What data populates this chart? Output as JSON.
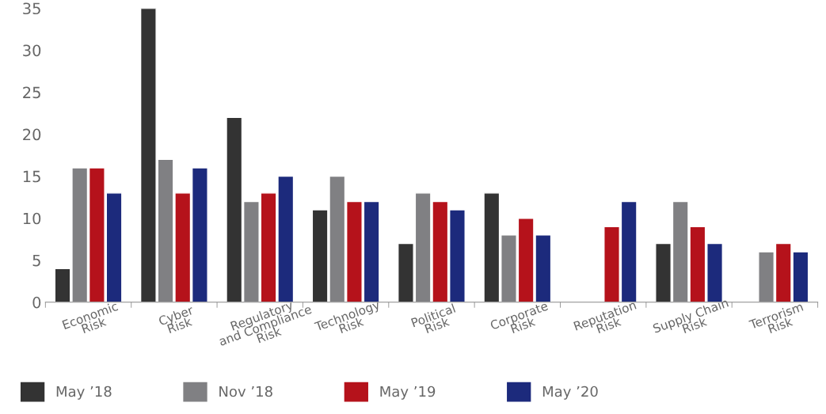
{
  "chart_data": {
    "type": "bar",
    "categories": [
      "Economic\nRisk",
      "Cyber\nRisk",
      "Regulatory\nand Compliance\nRisk",
      "Technology\nRisk",
      "Political\nRisk",
      "Corporate\nRisk",
      "Reputation\nRisk",
      "Supply Chain\nRisk",
      "Terrorism\nRisk"
    ],
    "series": [
      {
        "name": "May ’18",
        "color": "#333333",
        "values": [
          4,
          35,
          22,
          11,
          7,
          13,
          null,
          7,
          null
        ]
      },
      {
        "name": "Nov ’18",
        "color": "#808083",
        "values": [
          16,
          17,
          12,
          15,
          13,
          8,
          null,
          12,
          6
        ]
      },
      {
        "name": "May ’19",
        "color": "#b5121b",
        "values": [
          16,
          13,
          13,
          12,
          12,
          10,
          9,
          9,
          7
        ]
      },
      {
        "name": "May ’20",
        "color": "#1c2a7c",
        "values": [
          13,
          16,
          15,
          12,
          11,
          8,
          12,
          7,
          6
        ]
      }
    ],
    "ylim": [
      0,
      35
    ],
    "yticks": [
      0,
      5,
      10,
      15,
      20,
      25,
      30,
      35
    ],
    "grid": false,
    "legend": "bottom"
  }
}
